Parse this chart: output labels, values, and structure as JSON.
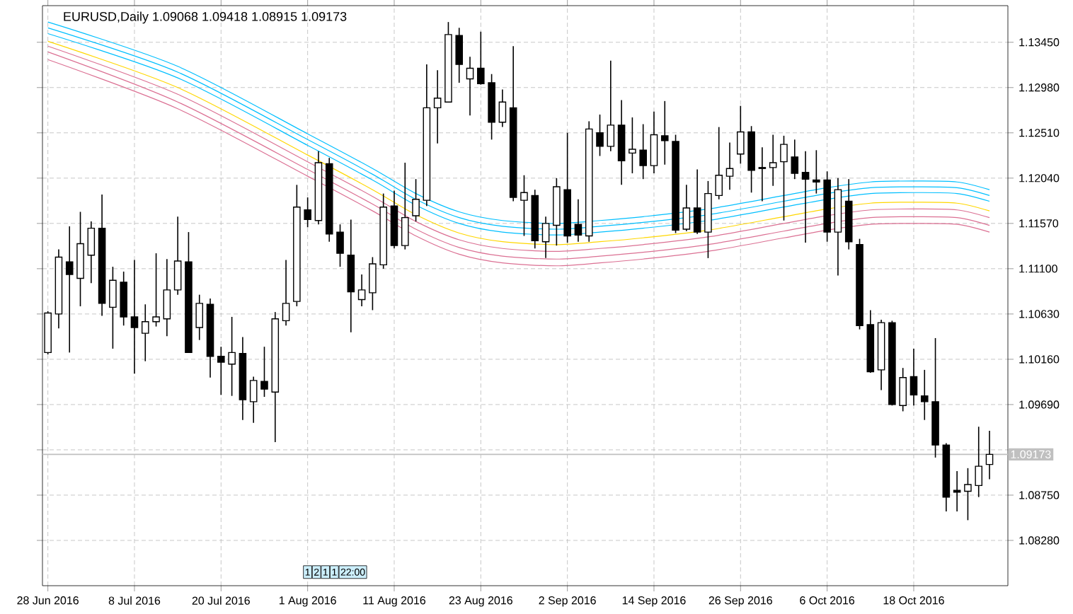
{
  "chart_data": {
    "type": "candlestick",
    "title": "EURUSD,Daily  1.09068 1.09418 1.08915 1.09173",
    "categories": [
      "28 Jun 2016",
      null,
      null,
      null,
      null,
      null,
      null,
      null,
      "8 Jul 2016",
      null,
      null,
      null,
      null,
      null,
      null,
      null,
      "20 Jul 2016",
      null,
      null,
      null,
      null,
      null,
      null,
      null,
      "1 Aug 2016",
      null,
      null,
      null,
      null,
      null,
      null,
      null,
      "11 Aug 2016",
      null,
      null,
      null,
      null,
      null,
      null,
      null,
      "23 Aug 2016",
      null,
      null,
      null,
      null,
      null,
      null,
      null,
      "2 Sep 2016",
      null,
      null,
      null,
      null,
      null,
      null,
      null,
      "14 Sep 2016",
      null,
      null,
      null,
      null,
      null,
      null,
      null,
      "26 Sep 2016",
      null,
      null,
      null,
      null,
      null,
      null,
      null,
      "6 Oct 2016",
      null,
      null,
      null,
      null,
      null,
      null,
      null,
      "18 Oct 2016",
      null,
      null,
      null,
      null,
      null,
      null,
      null
    ],
    "ohlc": [
      [
        1.1023,
        1.1066,
        1.1021,
        1.1064
      ],
      [
        1.1063,
        1.113,
        1.1048,
        1.1122
      ],
      [
        1.1117,
        1.1154,
        1.1023,
        1.1104
      ],
      [
        1.11,
        1.1169,
        1.1071,
        1.1136
      ],
      [
        1.1124,
        1.1159,
        1.1095,
        1.1152
      ],
      [
        1.1152,
        1.1187,
        1.1061,
        1.1074
      ],
      [
        1.107,
        1.1112,
        1.1027,
        1.1098
      ],
      [
        1.1096,
        1.1107,
        1.1051,
        1.106
      ],
      [
        1.106,
        1.1119,
        1.1001,
        1.1049
      ],
      [
        1.1043,
        1.1073,
        1.1014,
        1.1055
      ],
      [
        1.1055,
        1.1126,
        1.105,
        1.106
      ],
      [
        1.1058,
        1.112,
        1.104,
        1.1088
      ],
      [
        1.1088,
        1.1164,
        1.1083,
        1.1118
      ],
      [
        1.1117,
        1.1148,
        1.1023,
        1.1023
      ],
      [
        1.1049,
        1.1083,
        1.1036,
        1.1074
      ],
      [
        1.1073,
        1.1079,
        1.0997,
        1.1019
      ],
      [
        1.1019,
        1.1029,
        1.0979,
        1.1013
      ],
      [
        1.1011,
        1.106,
        1.0978,
        1.1023
      ],
      [
        1.1022,
        1.1039,
        1.0953,
        1.0974
      ],
      [
        1.0972,
        1.0998,
        1.095,
        1.0994
      ],
      [
        1.0993,
        1.1029,
        1.0977,
        1.0985
      ],
      [
        1.0982,
        1.1065,
        1.093,
        1.1058
      ],
      [
        1.1056,
        1.1119,
        1.1051,
        1.1074
      ],
      [
        1.1076,
        1.1197,
        1.1071,
        1.1174
      ],
      [
        1.1171,
        1.1184,
        1.1153,
        1.1161
      ],
      [
        1.116,
        1.1232,
        1.1156,
        1.122
      ],
      [
        1.1219,
        1.1225,
        1.1138,
        1.1146
      ],
      [
        1.1148,
        1.1156,
        1.1112,
        1.1126
      ],
      [
        1.1124,
        1.1161,
        1.1044,
        1.1086
      ],
      [
        1.1078,
        1.1104,
        1.1071,
        1.1088
      ],
      [
        1.1085,
        1.1122,
        1.1067,
        1.1115
      ],
      [
        1.1114,
        1.1188,
        1.111,
        1.1174
      ],
      [
        1.1175,
        1.1191,
        1.1131,
        1.1134
      ],
      [
        1.1134,
        1.122,
        1.113,
        1.1163
      ],
      [
        1.1165,
        1.1203,
        1.1159,
        1.1182
      ],
      [
        1.1181,
        1.1322,
        1.1175,
        1.1277
      ],
      [
        1.1277,
        1.1316,
        1.124,
        1.1287
      ],
      [
        1.1283,
        1.1366,
        1.1283,
        1.1353
      ],
      [
        1.1352,
        1.136,
        1.1303,
        1.1322
      ],
      [
        1.1307,
        1.133,
        1.1269,
        1.1318
      ],
      [
        1.1318,
        1.1356,
        1.1301,
        1.1302
      ],
      [
        1.1303,
        1.1312,
        1.1244,
        1.1262
      ],
      [
        1.1262,
        1.1296,
        1.1257,
        1.1283
      ],
      [
        1.1277,
        1.1341,
        1.118,
        1.1184
      ],
      [
        1.1181,
        1.1207,
        1.1144,
        1.1189
      ],
      [
        1.1186,
        1.1192,
        1.1131,
        1.1139
      ],
      [
        1.1138,
        1.1164,
        1.1121,
        1.1157
      ],
      [
        1.1155,
        1.1204,
        1.1134,
        1.1195
      ],
      [
        1.1192,
        1.1251,
        1.1137,
        1.1144
      ],
      [
        1.1156,
        1.1182,
        1.1138,
        1.1145
      ],
      [
        1.1144,
        1.1263,
        1.1138,
        1.1255
      ],
      [
        1.1251,
        1.127,
        1.1227,
        1.1237
      ],
      [
        1.1237,
        1.1326,
        1.1232,
        1.1259
      ],
      [
        1.1259,
        1.1285,
        1.1197,
        1.1222
      ],
      [
        1.123,
        1.1267,
        1.1209,
        1.1234
      ],
      [
        1.1233,
        1.126,
        1.1203,
        1.1217
      ],
      [
        1.1217,
        1.1273,
        1.1209,
        1.1249
      ],
      [
        1.1248,
        1.1284,
        1.1218,
        1.1243
      ],
      [
        1.1242,
        1.1249,
        1.1147,
        1.115
      ],
      [
        1.1151,
        1.1197,
        1.1149,
        1.1173
      ],
      [
        1.1173,
        1.1213,
        1.1146,
        1.1148
      ],
      [
        1.1148,
        1.1201,
        1.1121,
        1.1188
      ],
      [
        1.1186,
        1.1257,
        1.1182,
        1.1207
      ],
      [
        1.1206,
        1.1241,
        1.1192,
        1.1214
      ],
      [
        1.1229,
        1.1279,
        1.1219,
        1.1252
      ],
      [
        1.1252,
        1.1258,
        1.1189,
        1.1212
      ],
      [
        1.1215,
        1.1236,
        1.118,
        1.1214
      ],
      [
        1.1215,
        1.1249,
        1.1196,
        1.122
      ],
      [
        1.1221,
        1.1248,
        1.116,
        1.1239
      ],
      [
        1.1226,
        1.1244,
        1.1203,
        1.1209
      ],
      [
        1.121,
        1.1232,
        1.1137,
        1.1203
      ],
      [
        1.1202,
        1.1233,
        1.1188,
        1.12
      ],
      [
        1.1202,
        1.1211,
        1.1138,
        1.1148
      ],
      [
        1.1148,
        1.1204,
        1.1103,
        1.1192
      ],
      [
        1.118,
        1.1203,
        1.113,
        1.1138
      ],
      [
        1.1135,
        1.1141,
        1.1047,
        1.1051
      ],
      [
        1.1052,
        1.1067,
        1.1002,
        1.1003
      ],
      [
        1.1005,
        1.1057,
        1.0984,
        1.1054
      ],
      [
        1.1054,
        1.1056,
        1.0968,
        1.0969
      ],
      [
        1.0968,
        1.1007,
        1.0962,
        1.0997
      ],
      [
        1.0998,
        1.1027,
        1.0968,
        1.0979
      ],
      [
        1.0978,
        1.1005,
        1.0953,
        1.0972
      ],
      [
        1.0972,
        1.1038,
        1.0914,
        1.0927
      ],
      [
        1.0927,
        1.0929,
        1.0858,
        1.0873
      ],
      [
        1.088,
        1.09,
        1.0858,
        1.0878
      ],
      [
        1.0879,
        1.0903,
        1.0849,
        1.0886
      ],
      [
        1.0885,
        1.0946,
        1.0873,
        1.0905
      ],
      [
        1.09068,
        1.09418,
        1.08915,
        1.09173
      ]
    ],
    "series": [
      {
        "type": "line",
        "color": "#00bfff",
        "values": [
          1.1366,
          null,
          null,
          null,
          null,
          null,
          null,
          null,
          null,
          null,
          null,
          null,
          1.132,
          null,
          null,
          null,
          null,
          null,
          null,
          null,
          null,
          null,
          null,
          null,
          1.125,
          null,
          null,
          null,
          null,
          null,
          1.1214,
          null,
          null,
          null,
          1.1188,
          null,
          null,
          null,
          1.1169,
          null,
          null,
          null,
          1.116,
          null,
          null,
          null,
          null,
          1.1157,
          null,
          null,
          null,
          1.116,
          null,
          null,
          null,
          1.1164,
          null,
          null,
          null,
          null,
          null,
          1.1172,
          null,
          null,
          null,
          null,
          null,
          null,
          1.1186,
          null,
          null,
          null,
          1.1194,
          null,
          null,
          null,
          1.12,
          null,
          null,
          null,
          1.1201,
          null,
          null,
          null,
          1.12,
          null,
          null,
          1.1192
        ]
      },
      {
        "type": "line",
        "color": "#00bfff",
        "values": [
          1.136,
          null,
          null,
          null,
          null,
          null,
          null,
          null,
          null,
          null,
          null,
          null,
          1.1314,
          null,
          null,
          null,
          null,
          null,
          null,
          null,
          null,
          null,
          null,
          null,
          1.1244,
          null,
          null,
          null,
          null,
          null,
          1.1208,
          null,
          null,
          null,
          1.1182,
          null,
          null,
          null,
          1.1163,
          null,
          null,
          null,
          1.1154,
          null,
          null,
          null,
          null,
          1.1151,
          null,
          null,
          null,
          1.1154,
          null,
          null,
          null,
          1.1158,
          null,
          null,
          null,
          null,
          null,
          1.1166,
          null,
          null,
          null,
          null,
          null,
          null,
          1.118,
          null,
          null,
          null,
          1.1188,
          null,
          null,
          null,
          1.1194,
          null,
          null,
          null,
          1.1195,
          null,
          null,
          null,
          1.1194,
          null,
          null,
          1.1186
        ]
      },
      {
        "type": "line",
        "color": "#00bfff",
        "values": [
          1.1354,
          null,
          null,
          null,
          null,
          null,
          null,
          null,
          null,
          null,
          null,
          null,
          1.1308,
          null,
          null,
          null,
          null,
          null,
          null,
          null,
          null,
          null,
          null,
          null,
          1.1238,
          null,
          null,
          null,
          null,
          null,
          1.1202,
          null,
          null,
          null,
          1.1176,
          null,
          null,
          null,
          1.1157,
          null,
          null,
          null,
          1.1148,
          null,
          null,
          null,
          null,
          1.1145,
          null,
          null,
          null,
          1.1148,
          null,
          null,
          null,
          1.1152,
          null,
          null,
          null,
          null,
          null,
          1.116,
          null,
          null,
          null,
          null,
          null,
          null,
          1.1174,
          null,
          null,
          null,
          1.1182,
          null,
          null,
          null,
          1.1188,
          null,
          null,
          null,
          1.1189,
          null,
          null,
          null,
          1.1188,
          null,
          null,
          1.118
        ]
      },
      {
        "type": "line",
        "color": "#ffd700",
        "values": [
          1.1346,
          null,
          null,
          null,
          null,
          null,
          null,
          null,
          null,
          null,
          null,
          null,
          1.1298,
          null,
          null,
          null,
          null,
          null,
          null,
          null,
          null,
          null,
          null,
          null,
          1.1228,
          null,
          null,
          null,
          null,
          null,
          1.1192,
          null,
          null,
          null,
          1.1166,
          null,
          null,
          null,
          1.1147,
          null,
          null,
          null,
          1.1138,
          null,
          null,
          null,
          null,
          1.1135,
          null,
          null,
          null,
          1.1138,
          null,
          null,
          null,
          1.1142,
          null,
          null,
          null,
          null,
          null,
          1.115,
          null,
          null,
          null,
          null,
          null,
          null,
          1.1164,
          null,
          null,
          null,
          1.1172,
          null,
          null,
          null,
          1.1178,
          null,
          null,
          null,
          1.1179,
          null,
          null,
          null,
          1.1178,
          null,
          null,
          1.117
        ]
      },
      {
        "type": "line",
        "color": "#db7093",
        "values": [
          1.1341,
          null,
          null,
          null,
          null,
          null,
          null,
          null,
          null,
          null,
          null,
          null,
          1.1291,
          null,
          null,
          null,
          null,
          null,
          null,
          null,
          null,
          null,
          null,
          null,
          1.1221,
          null,
          null,
          null,
          null,
          null,
          1.1185,
          null,
          null,
          null,
          1.1159,
          null,
          null,
          null,
          1.114,
          null,
          null,
          null,
          1.1131,
          null,
          null,
          null,
          null,
          1.1128,
          null,
          null,
          null,
          1.1131,
          null,
          null,
          null,
          1.1135,
          null,
          null,
          null,
          null,
          null,
          1.1143,
          null,
          null,
          null,
          null,
          null,
          null,
          1.1157,
          null,
          null,
          null,
          1.1165,
          null,
          null,
          null,
          1.1171,
          null,
          null,
          null,
          1.1172,
          null,
          null,
          null,
          1.1171,
          null,
          null,
          1.1163
        ]
      },
      {
        "type": "line",
        "color": "#db7093",
        "values": [
          1.1335,
          null,
          null,
          null,
          null,
          null,
          null,
          null,
          null,
          null,
          null,
          null,
          1.1283,
          null,
          null,
          null,
          null,
          null,
          null,
          null,
          null,
          null,
          null,
          null,
          1.1213,
          null,
          null,
          null,
          null,
          null,
          1.1177,
          null,
          null,
          null,
          1.1151,
          null,
          null,
          null,
          1.1132,
          null,
          null,
          null,
          1.1123,
          null,
          null,
          null,
          null,
          1.112,
          null,
          null,
          null,
          1.1123,
          null,
          null,
          null,
          1.1127,
          null,
          null,
          null,
          null,
          null,
          1.1135,
          null,
          null,
          null,
          null,
          null,
          null,
          1.1149,
          null,
          null,
          null,
          1.1157,
          null,
          null,
          null,
          1.1163,
          null,
          null,
          null,
          1.1164,
          null,
          null,
          null,
          1.1163,
          null,
          null,
          1.1155
        ]
      },
      {
        "type": "line",
        "color": "#db7093",
        "values": [
          1.1327,
          null,
          null,
          null,
          null,
          null,
          null,
          null,
          null,
          null,
          null,
          null,
          1.1276,
          null,
          null,
          null,
          null,
          null,
          null,
          null,
          null,
          null,
          null,
          null,
          1.1206,
          null,
          null,
          null,
          null,
          null,
          1.117,
          null,
          null,
          null,
          1.1144,
          null,
          null,
          null,
          1.1125,
          null,
          null,
          null,
          1.1116,
          null,
          null,
          null,
          null,
          1.1113,
          null,
          null,
          null,
          1.1116,
          null,
          null,
          null,
          1.112,
          null,
          null,
          null,
          null,
          null,
          1.1128,
          null,
          null,
          null,
          null,
          null,
          null,
          1.1142,
          null,
          null,
          null,
          1.115,
          null,
          null,
          null,
          1.1156,
          null,
          null,
          null,
          1.1157,
          null,
          null,
          null,
          1.1156,
          null,
          null,
          1.1148
        ]
      }
    ],
    "ylim": [
      1.0781,
      1.1383
    ],
    "yticks": [
      {
        "value": 1.0828,
        "label": "1.08280"
      },
      {
        "value": 1.0875,
        "label": "1.08750"
      },
      {
        "value": 1.0922,
        "label": null
      },
      {
        "value": 1.0969,
        "label": "1.09690"
      },
      {
        "value": 1.1016,
        "label": "1.10160"
      },
      {
        "value": 1.1063,
        "label": "1.10630"
      },
      {
        "value": 1.111,
        "label": "1.11100"
      },
      {
        "value": 1.1157,
        "label": "1.11570"
      },
      {
        "value": 1.1204,
        "label": "1.12040"
      },
      {
        "value": 1.1251,
        "label": "1.12510"
      },
      {
        "value": 1.1298,
        "label": "1.12980"
      },
      {
        "value": 1.1345,
        "label": "1.13450"
      }
    ],
    "ref_lines": [
      {
        "axis": "y",
        "value": 1.09173,
        "label": "1.09173",
        "color": "#c0c0c0"
      }
    ],
    "annotations": [
      "1",
      "2",
      "1",
      "1",
      "22:00"
    ],
    "grid": true
  }
}
